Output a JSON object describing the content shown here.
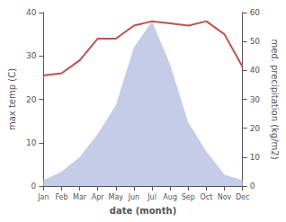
{
  "chart_data": {
    "type": "line",
    "xlabel": "date (month)",
    "ylabel": "max temp (C)",
    "y2label": "med. precipitation (kg/m2)",
    "categories": [
      "Jan",
      "Feb",
      "Mar",
      "Apr",
      "May",
      "Jun",
      "Jul",
      "Aug",
      "Sep",
      "Oct",
      "Nov",
      "Dec"
    ],
    "series": [
      {
        "type": "area",
        "axis": "y2",
        "color": "#c5cce8",
        "values": [
          2.0,
          5.0,
          10.0,
          18.0,
          28.0,
          48.0,
          57.0,
          42.0,
          22.0,
          12.0,
          4.0,
          2.0
        ]
      },
      {
        "type": "line",
        "color": "#c0504d",
        "values": [
          25.5,
          26.0,
          29.0,
          34.0,
          34.0,
          37.0,
          38.0,
          37.5,
          37.0,
          38.0,
          35.0,
          27.5
        ]
      }
    ],
    "ylim": [
      0,
      40
    ],
    "yticks": [
      0,
      10,
      20,
      30,
      40
    ],
    "y2lim": [
      0,
      60
    ],
    "y2ticks": [
      0,
      10,
      20,
      30,
      40,
      50,
      60
    ],
    "grid": false
  }
}
